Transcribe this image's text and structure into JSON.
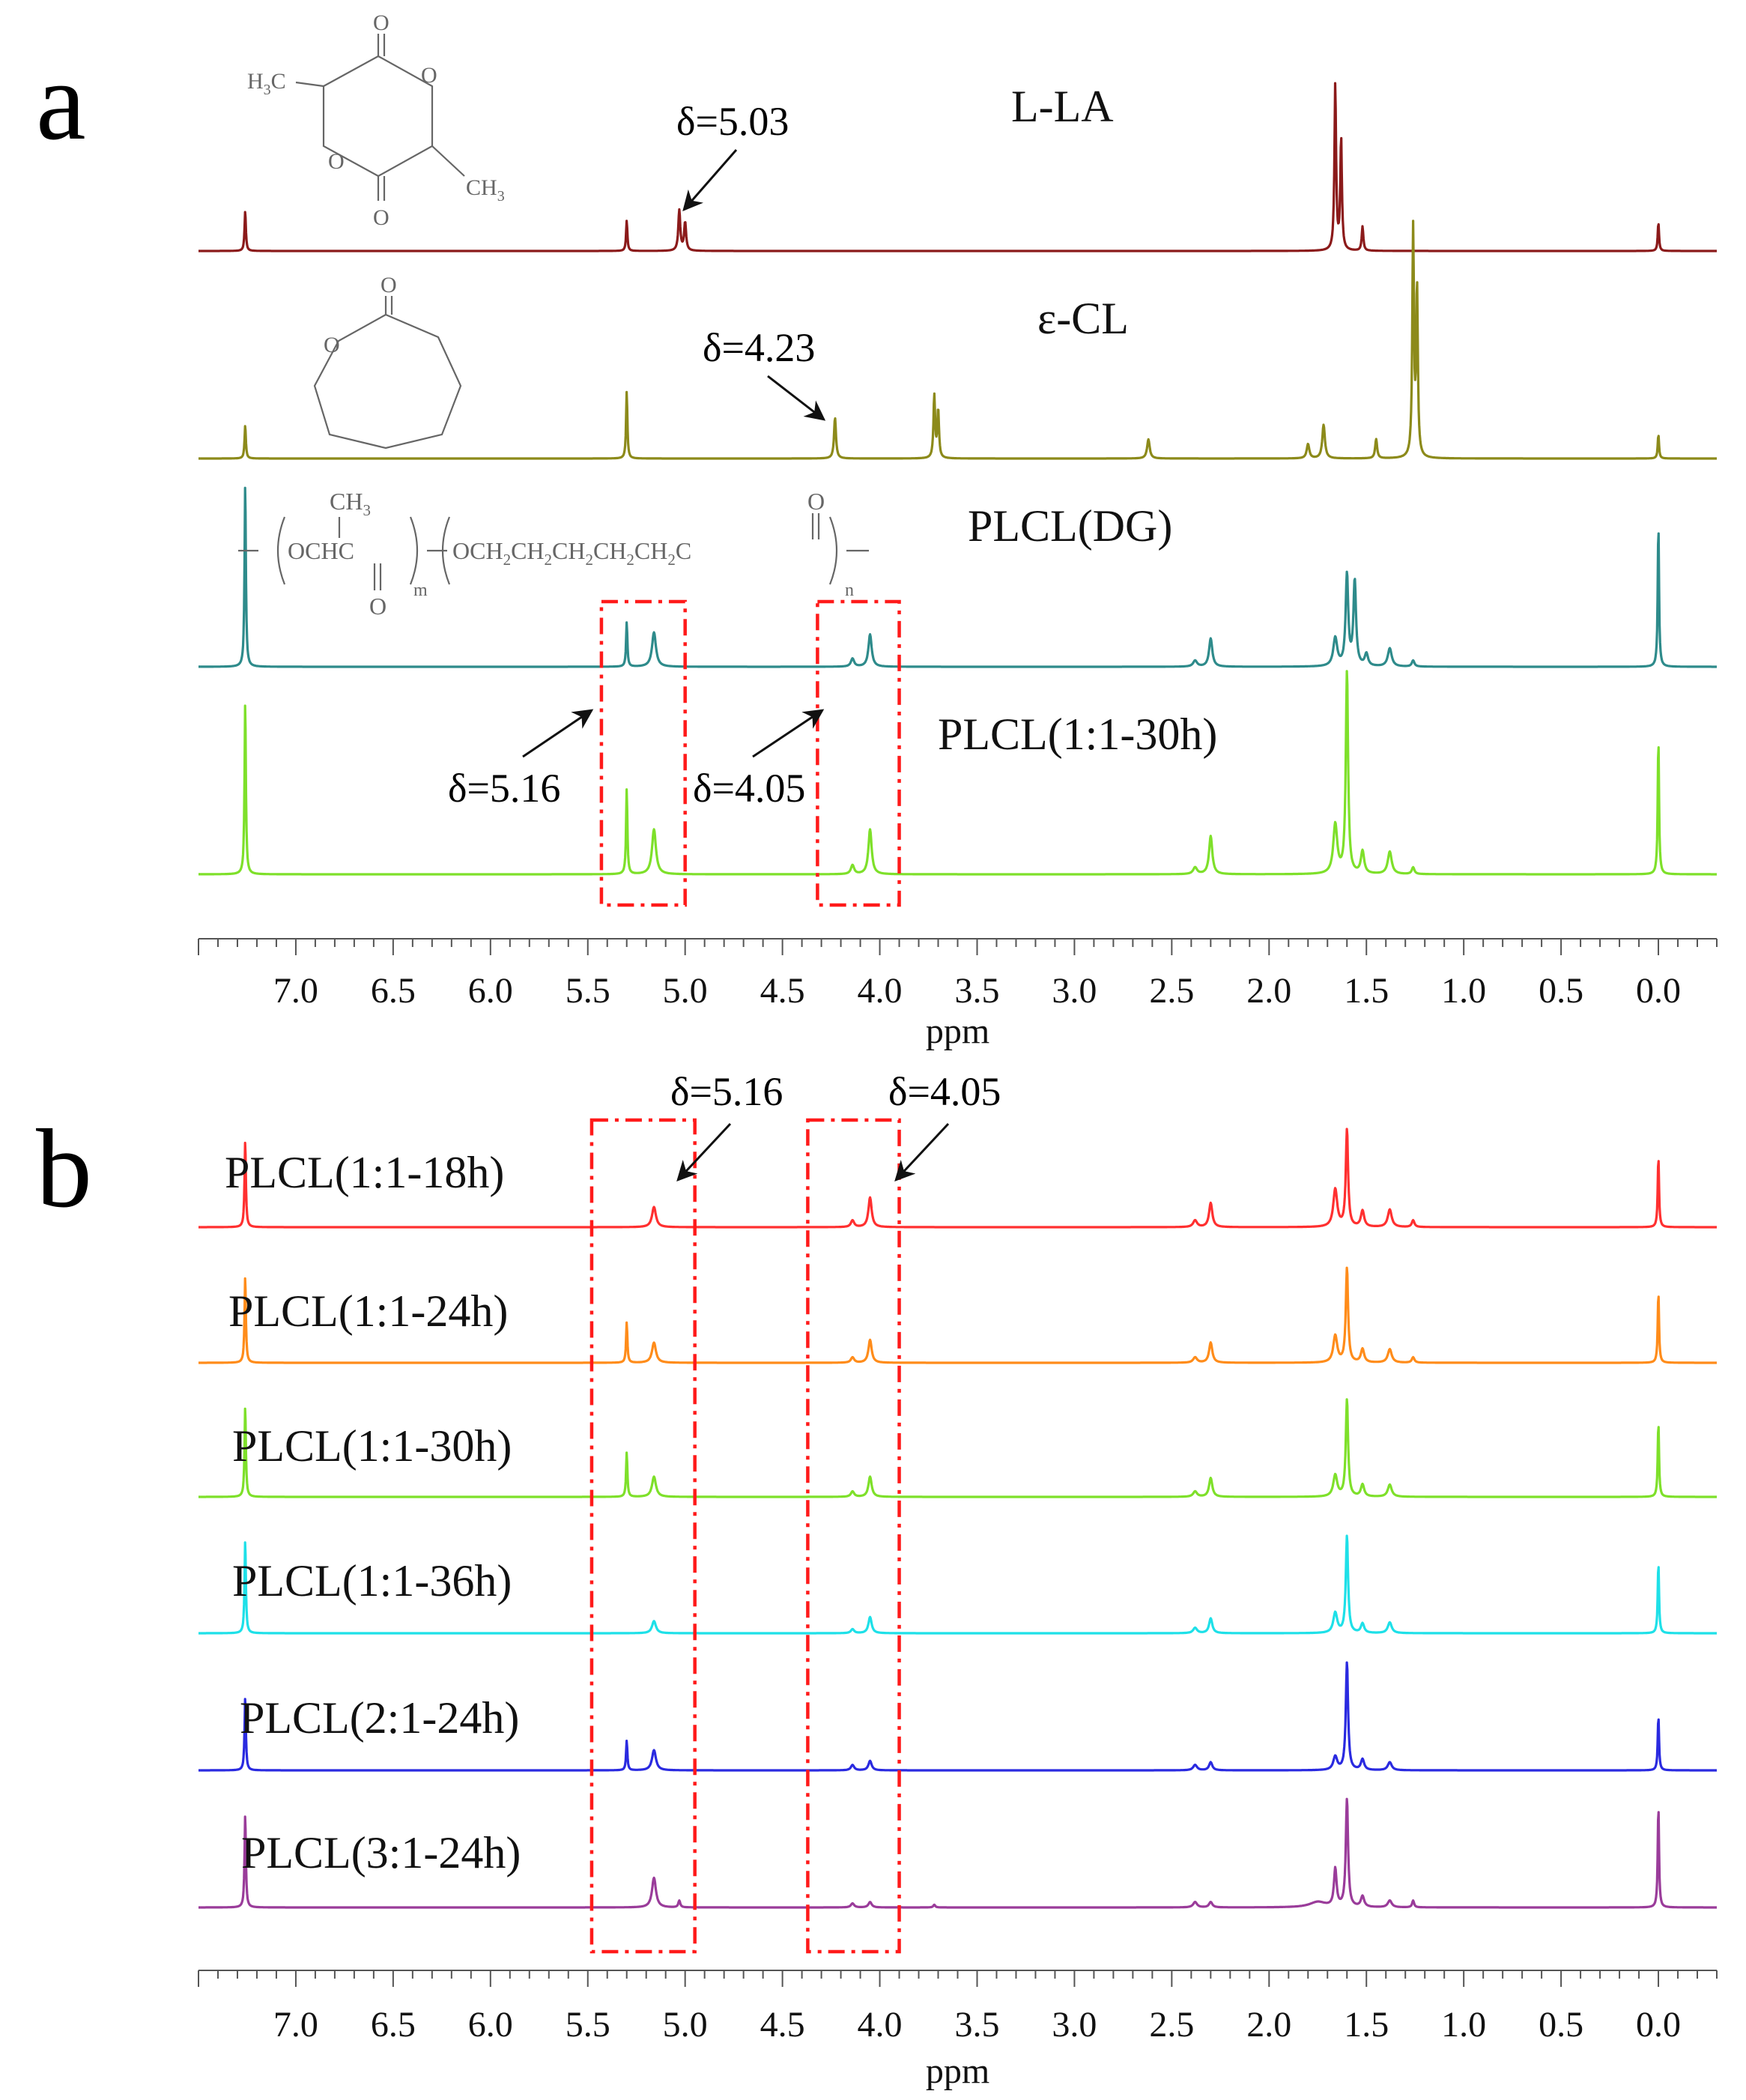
{
  "chart_data": {
    "type": "line",
    "subtype": "1H NMR spectra (stacked)",
    "x_reversed": true,
    "panels": [
      {
        "id": "a",
        "panel_label": "a",
        "xlabel": "ppm",
        "xlim": [
          -0.3,
          7.5
        ],
        "xticks": [
          7.0,
          6.5,
          6.0,
          5.5,
          5.0,
          4.5,
          4.0,
          3.5,
          3.0,
          2.5,
          2.0,
          1.5,
          1.0,
          0.5,
          0.0
        ],
        "xtick_labels": [
          "7.0",
          "6.5",
          "6.0",
          "5.5",
          "5.0",
          "4.5",
          "4.0",
          "3.5",
          "3.0",
          "2.5",
          "2.0",
          "1.5",
          "1.0",
          "0.5",
          "0.0"
        ],
        "series": [
          {
            "name": "L-LA",
            "color": "#8b1a1a",
            "peaks": [
              [
                7.26,
                0.2,
                0.004
              ],
              [
                5.3,
                0.15,
                0.004
              ],
              [
                5.03,
                0.2,
                0.006
              ],
              [
                5.0,
                0.14,
                0.006
              ],
              [
                1.66,
                0.82,
                0.005
              ],
              [
                1.63,
                0.55,
                0.005
              ],
              [
                1.52,
                0.12,
                0.005
              ],
              [
                0.0,
                0.14,
                0.004
              ]
            ]
          },
          {
            "name": "ε-CL",
            "color": "#8c8a1a",
            "peaks": [
              [
                7.26,
                0.14,
                0.004
              ],
              [
                5.3,
                0.28,
                0.004
              ],
              [
                4.23,
                0.17,
                0.006
              ],
              [
                3.72,
                0.26,
                0.005
              ],
              [
                3.7,
                0.2,
                0.005
              ],
              [
                2.62,
                0.08,
                0.008
              ],
              [
                1.8,
                0.06,
                0.008
              ],
              [
                1.72,
                0.14,
                0.008
              ],
              [
                1.45,
                0.08,
                0.006
              ],
              [
                1.26,
                0.95,
                0.005
              ],
              [
                1.24,
                0.7,
                0.005
              ],
              [
                0.0,
                0.1,
                0.004
              ]
            ]
          },
          {
            "name": "PLCL(DG)",
            "color": "#2e8b8b",
            "peaks": [
              [
                7.26,
                0.92,
                0.004
              ],
              [
                5.3,
                0.22,
                0.004
              ],
              [
                5.16,
                0.17,
                0.012
              ],
              [
                4.14,
                0.04,
                0.01
              ],
              [
                4.05,
                0.16,
                0.01
              ],
              [
                2.38,
                0.03,
                0.012
              ],
              [
                2.3,
                0.14,
                0.01
              ],
              [
                1.66,
                0.14,
                0.012
              ],
              [
                1.6,
                0.45,
                0.008
              ],
              [
                1.56,
                0.42,
                0.008
              ],
              [
                1.5,
                0.06,
                0.01
              ],
              [
                1.38,
                0.09,
                0.012
              ],
              [
                1.26,
                0.03,
                0.008
              ],
              [
                0.0,
                0.7,
                0.004
              ]
            ]
          },
          {
            "name": "PLCL(1:1-30h)",
            "color": "#7ee02a",
            "peaks": [
              [
                7.26,
                0.78,
                0.004
              ],
              [
                5.3,
                0.38,
                0.004
              ],
              [
                5.16,
                0.2,
                0.012
              ],
              [
                4.14,
                0.04,
                0.01
              ],
              [
                4.05,
                0.2,
                0.01
              ],
              [
                2.38,
                0.03,
                0.012
              ],
              [
                2.3,
                0.17,
                0.01
              ],
              [
                1.66,
                0.22,
                0.012
              ],
              [
                1.6,
                0.9,
                0.007
              ],
              [
                1.52,
                0.1,
                0.01
              ],
              [
                1.38,
                0.1,
                0.012
              ],
              [
                1.26,
                0.03,
                0.008
              ],
              [
                0.0,
                0.6,
                0.004
              ]
            ]
          }
        ],
        "annotations": [
          {
            "text": "δ=5.03",
            "x": 5.03,
            "series": "L-LA"
          },
          {
            "text": "δ=4.23",
            "x": 4.23,
            "series": "ε-CL"
          },
          {
            "text": "δ=5.16",
            "x": 5.16,
            "series": "PLCL(1:1-30h)"
          },
          {
            "text": "δ=4.05",
            "x": 4.05,
            "series": "PLCL(1:1-30h)"
          }
        ],
        "highlight_regions": [
          [
            5.43,
            5.0
          ],
          [
            4.32,
            3.9
          ]
        ],
        "structure_labels": {
          "lla": {
            "h3c": "H",
            "h3c_sub": "3",
            "h3c_tail": "C",
            "ch3": "CH",
            "ch3_sub": "3",
            "o_top": "O",
            "o_bottom": "O",
            "o_ring_left": "O",
            "o_ring_right": "O"
          },
          "ecl": {
            "o_carbonyl": "O",
            "o_ring": "O"
          },
          "plcl": {
            "ch3": "CH",
            "ch3_sub": "3",
            "oc_a": "OCHC",
            "oc_b": "OCH",
            "oc_c": "CH",
            "oc_d": "CH",
            "oc_e": "CH",
            "oc_f": "CH",
            "oc_g": "C",
            "sub2": "2",
            "o_left": "O",
            "o_right": "O",
            "m": "m",
            "n": "n"
          }
        }
      },
      {
        "id": "b",
        "panel_label": "b",
        "xlabel": "ppm",
        "xlim": [
          -0.3,
          7.5
        ],
        "xticks": [
          7.0,
          6.5,
          6.0,
          5.5,
          5.0,
          4.5,
          4.0,
          3.5,
          3.0,
          2.5,
          2.0,
          1.5,
          1.0,
          0.5,
          0.0
        ],
        "xtick_labels": [
          "7.0",
          "6.5",
          "6.0",
          "5.5",
          "5.0",
          "4.5",
          "4.0",
          "3.5",
          "3.0",
          "2.5",
          "2.0",
          "1.5",
          "1.0",
          "0.5",
          "0.0"
        ],
        "series": [
          {
            "name": "PLCL(1:1-18h)",
            "color": "#ff3030",
            "peaks": [
              [
                7.26,
                0.65,
                0.004
              ],
              [
                5.16,
                0.15,
                0.012
              ],
              [
                4.14,
                0.05,
                0.01
              ],
              [
                4.05,
                0.22,
                0.01
              ],
              [
                2.38,
                0.05,
                0.012
              ],
              [
                2.3,
                0.18,
                0.01
              ],
              [
                1.66,
                0.28,
                0.012
              ],
              [
                1.6,
                0.72,
                0.007
              ],
              [
                1.52,
                0.12,
                0.01
              ],
              [
                1.38,
                0.13,
                0.012
              ],
              [
                1.26,
                0.05,
                0.008
              ],
              [
                0.0,
                0.52,
                0.004
              ]
            ]
          },
          {
            "name": "PLCL(1:1-24h)",
            "color": "#ff8c1a",
            "peaks": [
              [
                7.26,
                0.65,
                0.004
              ],
              [
                5.3,
                0.3,
                0.004
              ],
              [
                5.16,
                0.15,
                0.012
              ],
              [
                4.14,
                0.04,
                0.01
              ],
              [
                4.05,
                0.17,
                0.01
              ],
              [
                2.38,
                0.04,
                0.012
              ],
              [
                2.3,
                0.15,
                0.01
              ],
              [
                1.66,
                0.2,
                0.012
              ],
              [
                1.6,
                0.7,
                0.007
              ],
              [
                1.52,
                0.1,
                0.01
              ],
              [
                1.38,
                0.1,
                0.012
              ],
              [
                1.26,
                0.04,
                0.008
              ],
              [
                0.0,
                0.52,
                0.004
              ]
            ]
          },
          {
            "name": "PLCL(1:1-30h)",
            "color": "#7ee02a",
            "peaks": [
              [
                7.26,
                0.68,
                0.004
              ],
              [
                5.3,
                0.33,
                0.004
              ],
              [
                5.16,
                0.15,
                0.012
              ],
              [
                4.14,
                0.04,
                0.01
              ],
              [
                4.05,
                0.15,
                0.01
              ],
              [
                2.38,
                0.04,
                0.012
              ],
              [
                2.3,
                0.14,
                0.01
              ],
              [
                1.66,
                0.16,
                0.012
              ],
              [
                1.6,
                0.72,
                0.007
              ],
              [
                1.52,
                0.09,
                0.01
              ],
              [
                1.38,
                0.09,
                0.012
              ],
              [
                0.0,
                0.55,
                0.004
              ]
            ]
          },
          {
            "name": "PLCL(1:1-36h)",
            "color": "#1ee0e8",
            "peaks": [
              [
                7.26,
                0.7,
                0.004
              ],
              [
                5.16,
                0.09,
                0.012
              ],
              [
                4.14,
                0.03,
                0.01
              ],
              [
                4.05,
                0.12,
                0.01
              ],
              [
                2.38,
                0.04,
                0.012
              ],
              [
                2.3,
                0.11,
                0.01
              ],
              [
                1.66,
                0.15,
                0.012
              ],
              [
                1.6,
                0.72,
                0.007
              ],
              [
                1.52,
                0.07,
                0.01
              ],
              [
                1.38,
                0.08,
                0.012
              ],
              [
                0.0,
                0.52,
                0.004
              ]
            ]
          },
          {
            "name": "PLCL(2:1-24h)",
            "color": "#2a2ae0",
            "peaks": [
              [
                7.26,
                0.55,
                0.004
              ],
              [
                5.3,
                0.22,
                0.004
              ],
              [
                5.16,
                0.15,
                0.012
              ],
              [
                4.14,
                0.04,
                0.01
              ],
              [
                4.05,
                0.07,
                0.01
              ],
              [
                2.38,
                0.04,
                0.012
              ],
              [
                2.3,
                0.06,
                0.01
              ],
              [
                1.66,
                0.1,
                0.012
              ],
              [
                1.6,
                0.8,
                0.007
              ],
              [
                1.52,
                0.08,
                0.01
              ],
              [
                1.38,
                0.06,
                0.012
              ],
              [
                0.0,
                0.4,
                0.004
              ]
            ]
          },
          {
            "name": "PLCL(3:1-24h)",
            "color": "#9a3c9a",
            "peaks": [
              [
                7.26,
                0.7,
                0.004
              ],
              [
                5.16,
                0.22,
                0.012
              ],
              [
                5.03,
                0.05,
                0.006
              ],
              [
                4.14,
                0.03,
                0.01
              ],
              [
                4.05,
                0.04,
                0.01
              ],
              [
                3.72,
                0.02,
                0.006
              ],
              [
                2.38,
                0.04,
                0.012
              ],
              [
                2.3,
                0.04,
                0.01
              ],
              [
                1.75,
                0.04,
                0.05
              ],
              [
                1.66,
                0.28,
                0.008
              ],
              [
                1.6,
                0.8,
                0.007
              ],
              [
                1.52,
                0.08,
                0.01
              ],
              [
                1.38,
                0.05,
                0.012
              ],
              [
                1.26,
                0.05,
                0.006
              ],
              [
                0.0,
                0.75,
                0.004
              ]
            ]
          }
        ],
        "annotations": [
          {
            "text": "δ=5.16",
            "x": 5.16,
            "series": "PLCL(1:1-18h)"
          },
          {
            "text": "δ=4.05",
            "x": 4.05,
            "series": "PLCL(1:1-18h)"
          }
        ],
        "highlight_regions": [
          [
            5.48,
            4.95
          ],
          [
            4.37,
            3.9
          ]
        ]
      }
    ]
  }
}
